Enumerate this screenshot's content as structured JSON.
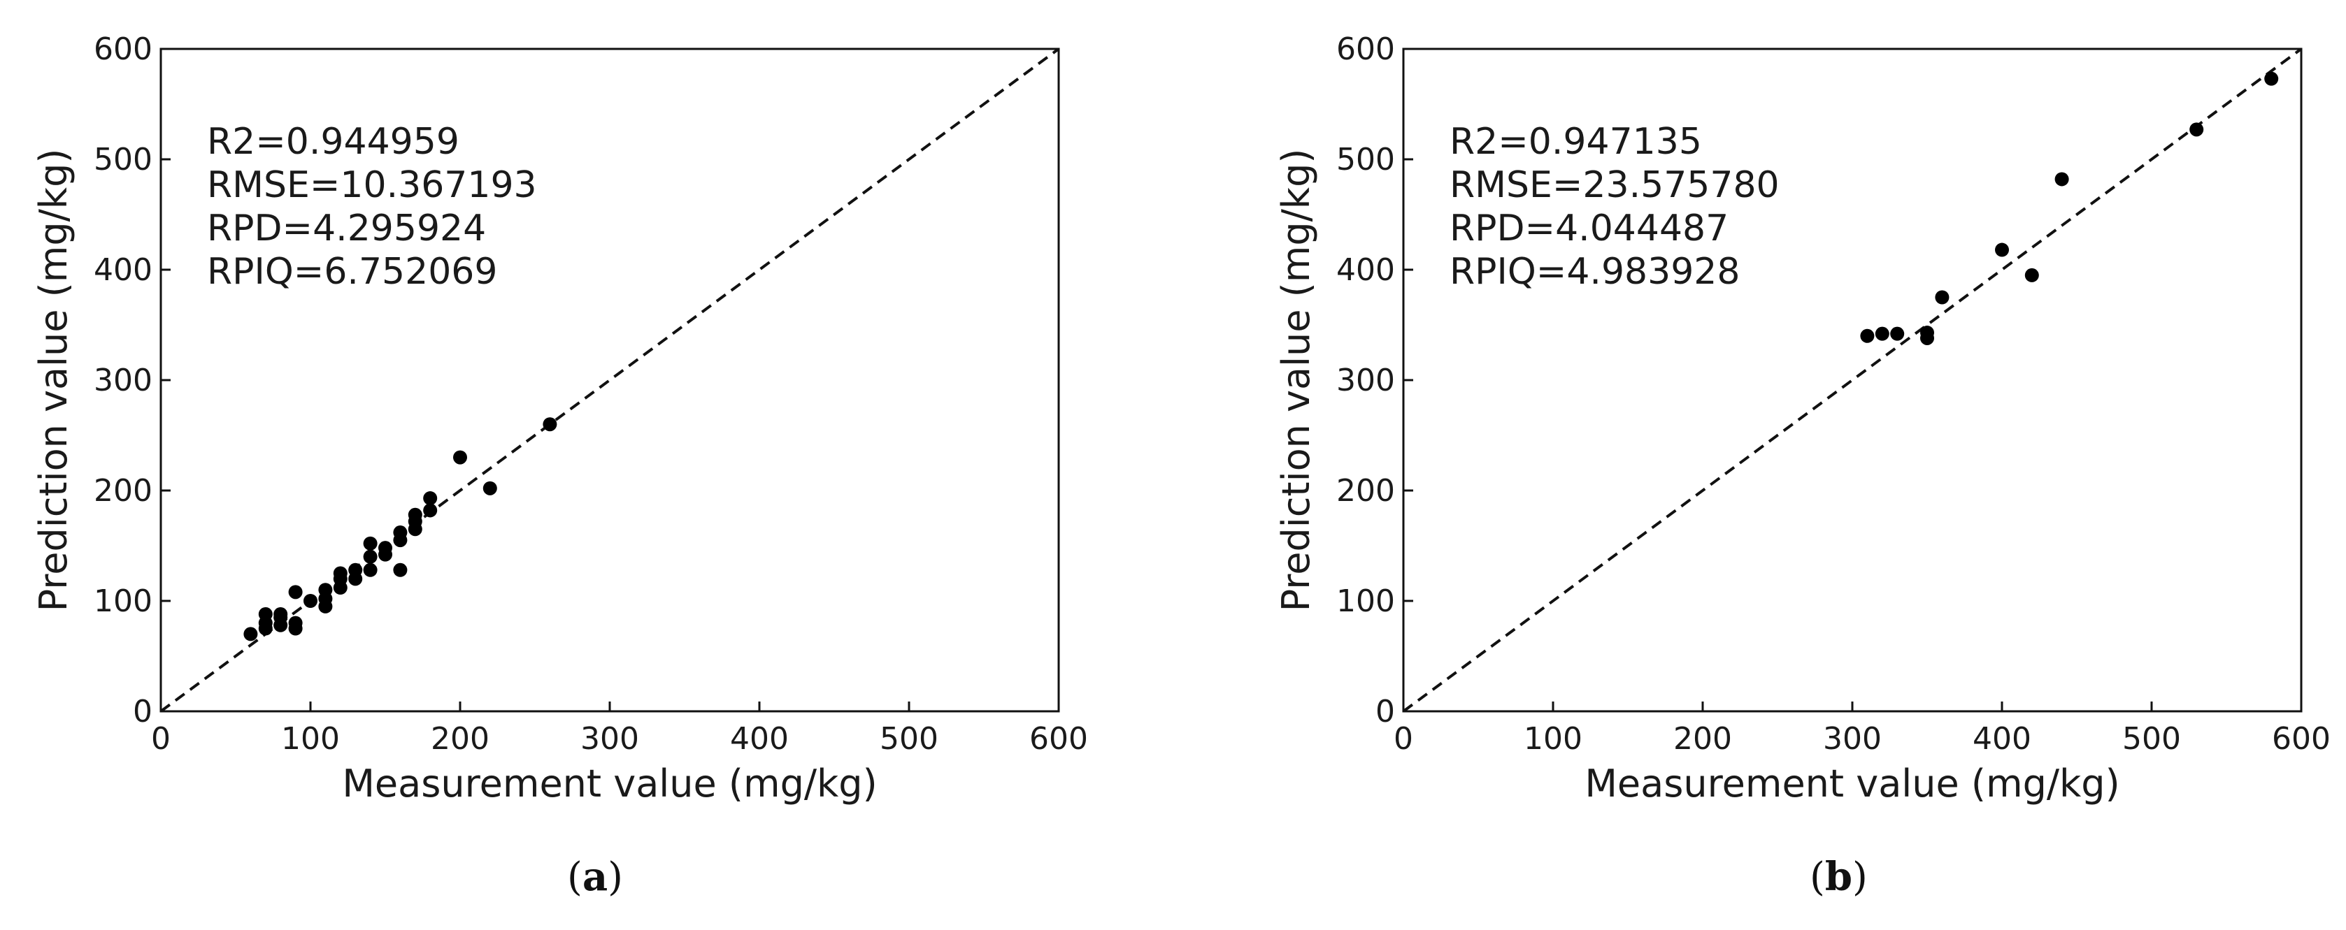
{
  "chart_data": [
    {
      "type": "scatter",
      "id": "a",
      "caption_letter": "a",
      "xlabel": "Measurement value (mg/kg)",
      "ylabel": "Prediction value (mg/kg)",
      "xlim": [
        0,
        600
      ],
      "ylim": [
        0,
        600
      ],
      "xticks": [
        0,
        100,
        200,
        300,
        400,
        500,
        600
      ],
      "yticks": [
        0,
        100,
        200,
        300,
        400,
        500,
        600
      ],
      "grid": false,
      "reference_line": "y = x, dashed",
      "stats": [
        "R2=0.944959",
        "RMSE=10.367193",
        "RPD=4.295924",
        "RPIQ=6.752069"
      ],
      "points": [
        [
          60,
          70
        ],
        [
          70,
          75
        ],
        [
          70,
          80
        ],
        [
          70,
          88
        ],
        [
          80,
          78
        ],
        [
          80,
          85
        ],
        [
          80,
          88
        ],
        [
          90,
          75
        ],
        [
          90,
          80
        ],
        [
          90,
          108
        ],
        [
          100,
          100
        ],
        [
          110,
          95
        ],
        [
          110,
          102
        ],
        [
          110,
          110
        ],
        [
          120,
          112
        ],
        [
          120,
          120
        ],
        [
          120,
          125
        ],
        [
          130,
          120
        ],
        [
          130,
          128
        ],
        [
          140,
          128
        ],
        [
          140,
          140
        ],
        [
          140,
          152
        ],
        [
          150,
          142
        ],
        [
          150,
          148
        ],
        [
          160,
          128
        ],
        [
          160,
          155
        ],
        [
          160,
          162
        ],
        [
          170,
          165
        ],
        [
          170,
          172
        ],
        [
          170,
          178
        ],
        [
          180,
          182
        ],
        [
          180,
          193
        ],
        [
          200,
          230
        ],
        [
          220,
          202
        ],
        [
          260,
          260
        ]
      ]
    },
    {
      "type": "scatter",
      "id": "b",
      "caption_letter": "b",
      "xlabel": "Measurement value (mg/kg)",
      "ylabel": "Prediction value (mg/kg)",
      "xlim": [
        0,
        600
      ],
      "ylim": [
        0,
        600
      ],
      "xticks": [
        0,
        100,
        200,
        300,
        400,
        500,
        600
      ],
      "yticks": [
        0,
        100,
        200,
        300,
        400,
        500,
        600
      ],
      "grid": false,
      "reference_line": "y = x, dashed",
      "stats": [
        "R2=0.947135",
        "RMSE=23.575780",
        "RPD=4.044487",
        "RPIQ=4.983928"
      ],
      "points": [
        [
          310,
          340
        ],
        [
          320,
          342
        ],
        [
          330,
          342
        ],
        [
          350,
          338
        ],
        [
          350,
          343
        ],
        [
          360,
          375
        ],
        [
          400,
          418
        ],
        [
          420,
          395
        ],
        [
          440,
          482
        ],
        [
          530,
          527
        ],
        [
          580,
          573
        ]
      ]
    }
  ]
}
